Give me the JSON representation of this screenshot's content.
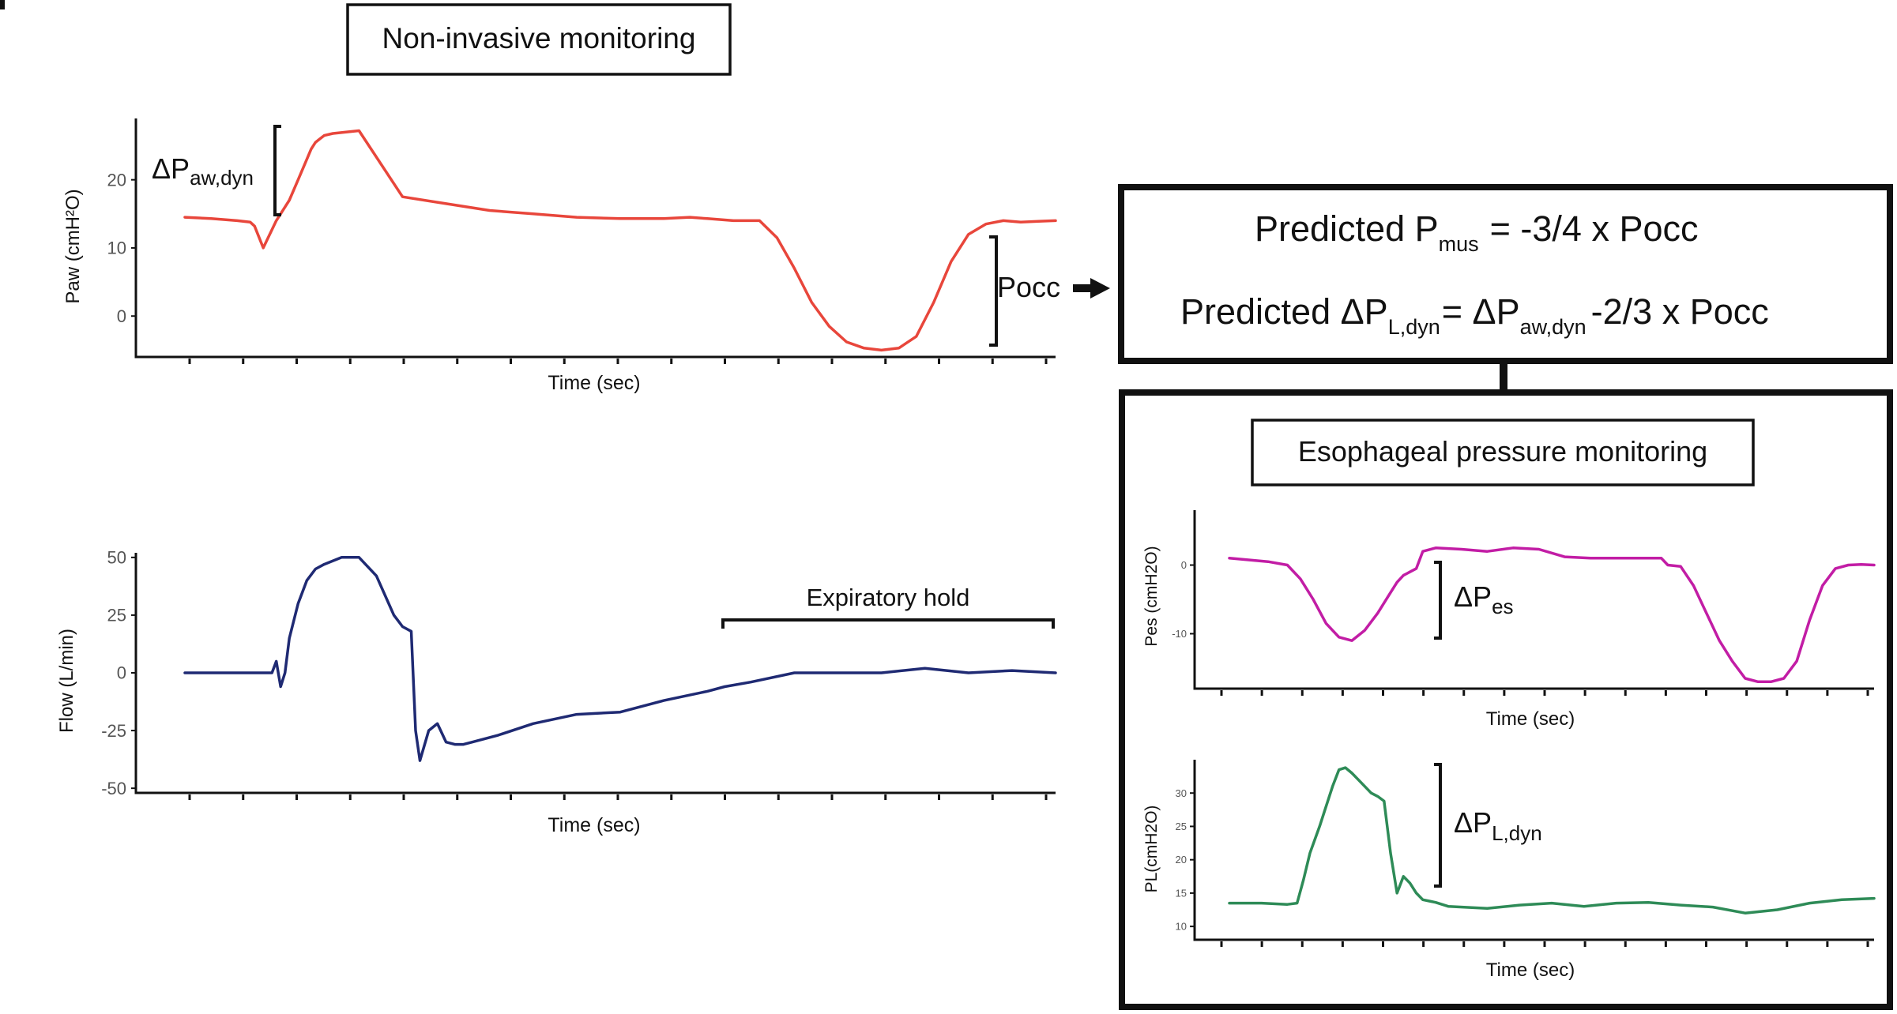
{
  "labels": {
    "noninvasive_title": "Non-invasive monitoring",
    "esophageal_title": "Esophageal pressure monitoring",
    "delta": "ΔP",
    "daw_sub": "aw,dyn",
    "dpes_sub": "es",
    "dpl_sub": "L,dyn",
    "pocc": "Pocc",
    "expiratory_hold": "Expiratory hold"
  },
  "formula": {
    "line1_a": "Predicted P",
    "line1_sub": "mus",
    "line1_b": "= -3/4 x Pocc",
    "line2_a": "Predicted ΔP",
    "line2_sub": "L,dyn",
    "line2_b": "= ΔP",
    "line2_sub2": "aw,dyn",
    "line2_c": "-2/3 x Pocc"
  },
  "colors": {
    "paw": "#E8463B",
    "flow": "#1F2A73",
    "pes": "#C21DA5",
    "pl": "#2E8B57",
    "axis": "#111111"
  },
  "chart_data": [
    {
      "id": "paw",
      "type": "line",
      "title": "",
      "xlabel": "Time (sec)",
      "ylabel": "Paw (cmH²O)",
      "ylim": [
        -6,
        29
      ],
      "yticks": [
        0,
        10,
        20
      ],
      "ytick_labels": [
        "0",
        "10",
        "20"
      ],
      "xticks": 17,
      "color": "#E8463B",
      "series": [
        {
          "name": "Paw",
          "x": [
            0,
            3,
            6,
            7.5,
            8,
            9,
            10.5,
            12,
            13,
            14,
            14.5,
            15,
            15.5,
            16,
            17,
            20,
            25,
            30,
            35,
            40,
            45,
            50,
            55,
            58,
            60,
            63,
            66,
            68,
            70,
            72,
            74,
            76,
            78,
            80,
            82,
            84,
            86,
            88,
            90,
            92,
            94,
            96,
            98,
            100
          ],
          "y": [
            14.5,
            14.3,
            14,
            13.8,
            13.2,
            10,
            14,
            17,
            20,
            23,
            24.5,
            25.5,
            26,
            26.5,
            26.8,
            27.2,
            17.5,
            16.5,
            15.5,
            15,
            14.5,
            14.3,
            14.3,
            14.5,
            14.3,
            14,
            14,
            11.5,
            7,
            2,
            -1.5,
            -3.8,
            -4.7,
            -5,
            -4.7,
            -3,
            2,
            8,
            12,
            13.5,
            14,
            13.8,
            13.9,
            14
          ]
        }
      ]
    },
    {
      "id": "flow",
      "type": "line",
      "xlabel": "Time (sec)",
      "ylabel": "Flow (L/min)",
      "ylim": [
        -52,
        52
      ],
      "yticks": [
        -50,
        -25,
        0,
        25,
        50
      ],
      "ytick_labels": [
        "-50",
        "-25",
        "0",
        "25",
        "50"
      ],
      "xticks": 17,
      "color": "#1F2A73",
      "series": [
        {
          "name": "Flow",
          "x": [
            0,
            3,
            6,
            9,
            10,
            10.5,
            11,
            11.5,
            12,
            13,
            14,
            15,
            16,
            18,
            20,
            22,
            24,
            25,
            26,
            26.5,
            27,
            28,
            29,
            30,
            31,
            32,
            33,
            36,
            40,
            45,
            50,
            55,
            60,
            62,
            65,
            70,
            75,
            80,
            85,
            90,
            95,
            100
          ],
          "y": [
            0,
            0,
            0,
            0,
            0,
            5,
            -6,
            0,
            15,
            30,
            40,
            45,
            47,
            50,
            50,
            42,
            25,
            20,
            18,
            -25,
            -38,
            -25,
            -22,
            -30,
            -31,
            -31,
            -30,
            -27,
            -22,
            -18,
            -17,
            -12,
            -8,
            -6,
            -4,
            0,
            0,
            0,
            2,
            0,
            1,
            0
          ]
        }
      ],
      "annotation": {
        "label": "Expiratory hold",
        "x_start": 62,
        "x_end": 100
      }
    },
    {
      "id": "pes",
      "type": "line",
      "xlabel": "Time (sec)",
      "ylabel": "Pes (cmH2O)",
      "ylim": [
        -18,
        8
      ],
      "yticks": [
        -10,
        0
      ],
      "ytick_labels": [
        "-10",
        "0"
      ],
      "xticks": 17,
      "color": "#C21DA5",
      "series": [
        {
          "name": "Pes",
          "x": [
            0,
            6,
            9,
            11,
            13,
            15,
            17,
            19,
            21,
            23,
            25,
            26,
            27,
            28,
            29,
            30,
            32,
            36,
            40,
            44,
            48,
            52,
            56,
            60,
            64,
            67,
            68,
            70,
            72,
            74,
            76,
            78,
            80,
            82,
            84,
            86,
            88,
            90,
            92,
            94,
            96,
            98,
            100
          ],
          "y": [
            1,
            0.5,
            0,
            -2,
            -5,
            -8.5,
            -10.5,
            -11,
            -9.5,
            -7,
            -4,
            -2.5,
            -1.5,
            -1,
            -0.5,
            2,
            2.5,
            2.3,
            2,
            2.5,
            2.3,
            1.2,
            1,
            1,
            1,
            1,
            0,
            -0.2,
            -3,
            -7,
            -11,
            -14,
            -16.5,
            -17,
            -17,
            -16.5,
            -14,
            -8,
            -3,
            -0.5,
            0,
            0.1,
            0
          ]
        }
      ]
    },
    {
      "id": "pl",
      "type": "line",
      "xlabel": "Time (sec)",
      "ylabel": "PL(cmH2O)",
      "ylim": [
        8,
        35
      ],
      "yticks": [
        10,
        15,
        20,
        25,
        30
      ],
      "ytick_labels": [
        "10",
        "15",
        "20",
        "25",
        "30"
      ],
      "xticks": 17,
      "color": "#2E8B57",
      "series": [
        {
          "name": "PL",
          "x": [
            0,
            5,
            9,
            10.5,
            11.5,
            12.5,
            14,
            15,
            16,
            17,
            18,
            19,
            20,
            21,
            22,
            23,
            24,
            25,
            26,
            27,
            28,
            29,
            30,
            31,
            32,
            34,
            40,
            45,
            50,
            55,
            60,
            65,
            70,
            75,
            80,
            85,
            90,
            95,
            100
          ],
          "y": [
            13.5,
            13.5,
            13.3,
            13.5,
            17,
            21,
            25,
            28,
            31,
            33.5,
            33.8,
            33,
            32,
            31,
            30,
            29.5,
            28.8,
            21,
            15,
            17.5,
            16.5,
            15,
            14,
            13.8,
            13.6,
            13,
            12.7,
            13.2,
            13.5,
            13,
            13.5,
            13.6,
            13.2,
            12.9,
            12,
            12.5,
            13.5,
            14,
            14.2
          ]
        }
      ]
    }
  ]
}
